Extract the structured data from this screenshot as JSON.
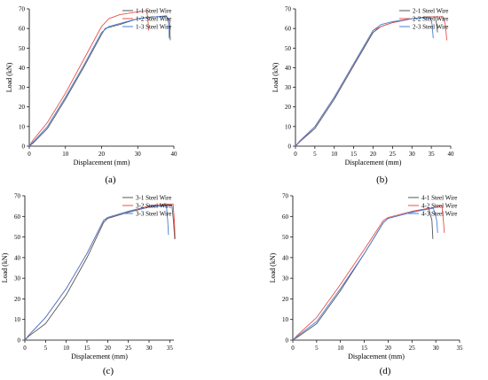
{
  "chart_data": [
    {
      "type": "line",
      "panel_label": "(a)",
      "xlabel": "Displacement (mm)",
      "ylabel": "Load (kN)",
      "xlim": [
        0,
        40
      ],
      "ylim": [
        0,
        70
      ],
      "xticks": [
        0,
        10,
        20,
        30,
        40
      ],
      "yticks": [
        0,
        10,
        20,
        30,
        40,
        50,
        60,
        70
      ],
      "legend": "top-right",
      "grid": false,
      "series": [
        {
          "name": "1-1 Steel Wire",
          "color": "#555555",
          "x": [
            0,
            1,
            5,
            10,
            15,
            20,
            21,
            25,
            30,
            34,
            38,
            38.8,
            39
          ],
          "y": [
            0,
            1.5,
            9,
            24,
            40,
            57,
            60,
            62,
            65,
            66,
            66,
            64,
            54
          ]
        },
        {
          "name": "1-2 Steel Wire",
          "color": "#e8514e",
          "x": [
            0,
            1,
            5,
            10,
            15,
            20,
            22,
            25,
            30,
            32.5,
            32.8,
            33
          ],
          "y": [
            0,
            3,
            12,
            27,
            44,
            61,
            65,
            67,
            68.5,
            69,
            65,
            59
          ]
        },
        {
          "name": "1-3 Steel Wire",
          "color": "#4a7fd4",
          "x": [
            0,
            1,
            5,
            10,
            15,
            20,
            22,
            25,
            30,
            35,
            38,
            38.5,
            38.7
          ],
          "y": [
            0,
            2,
            10,
            25,
            41,
            58,
            61,
            62.5,
            65,
            66,
            66.5,
            63,
            55
          ]
        }
      ]
    },
    {
      "type": "line",
      "panel_label": "(b)",
      "xlabel": "Displacement (mm)",
      "ylabel": "Load (kN)",
      "xlim": [
        0,
        40
      ],
      "ylim": [
        0,
        70
      ],
      "xticks": [
        0,
        5,
        10,
        15,
        20,
        25,
        30,
        35,
        40
      ],
      "yticks": [
        0,
        10,
        20,
        30,
        40,
        50,
        60,
        70
      ],
      "legend": "top-right",
      "grid": false,
      "series": [
        {
          "name": "2-1 Steel Wire",
          "color": "#555555",
          "x": [
            0,
            1,
            5,
            10,
            15,
            20,
            22,
            25,
            30,
            34,
            36,
            36.3,
            36.6
          ],
          "y": [
            0,
            2,
            9,
            24,
            41,
            58,
            61,
            63,
            65,
            66,
            66,
            63,
            58
          ]
        },
        {
          "name": "2-2 Steel Wire",
          "color": "#e8514e",
          "x": [
            0,
            1,
            5,
            10,
            15,
            20,
            22,
            25,
            30,
            35,
            38,
            38.6,
            39
          ],
          "y": [
            0,
            2,
            10,
            25,
            42,
            59,
            61,
            63,
            65,
            66,
            66,
            62,
            54
          ]
        },
        {
          "name": "2-3 Steel Wire",
          "color": "#4a7fd4",
          "x": [
            0,
            1,
            5,
            10,
            15,
            20,
            22,
            25,
            30,
            33,
            34.8,
            35.2,
            35.5
          ],
          "y": [
            0,
            2.5,
            10,
            25,
            42,
            59,
            62,
            63.5,
            65,
            65.5,
            65.5,
            62,
            55
          ]
        }
      ]
    },
    {
      "type": "line",
      "panel_label": "(c)",
      "xlabel": "Displacement (mm)",
      "ylabel": "Load (kN)",
      "xlim": [
        0,
        36
      ],
      "ylim": [
        0,
        70
      ],
      "xticks": [
        0,
        5,
        10,
        15,
        20,
        25,
        30,
        35
      ],
      "yticks": [
        0,
        10,
        20,
        30,
        40,
        50,
        60,
        70
      ],
      "legend": "top-right",
      "grid": false,
      "series": [
        {
          "name": "3-1 Steel Wire",
          "color": "#555555",
          "x": [
            0,
            1,
            5,
            10,
            15,
            19,
            20,
            25,
            30,
            34,
            35.5,
            35.9,
            36.2
          ],
          "y": [
            0,
            2,
            8,
            22,
            40,
            57,
            59,
            62,
            64.5,
            65.5,
            65.5,
            58,
            49
          ]
        },
        {
          "name": "3-2 Steel Wire",
          "color": "#e8514e",
          "x": [
            0,
            1,
            5,
            10,
            15,
            19,
            20,
            25,
            30,
            34,
            35.8,
            36.1,
            36.3
          ],
          "y": [
            0,
            2.5,
            11,
            25,
            42,
            58,
            59.5,
            62.5,
            65,
            66,
            66,
            58,
            49
          ]
        },
        {
          "name": "3-3 Steel Wire",
          "color": "#4a7fd4",
          "x": [
            0,
            1,
            5,
            10,
            15,
            19,
            20,
            25,
            30,
            33,
            34.2,
            34.5,
            34.7
          ],
          "y": [
            0,
            2.5,
            11,
            25,
            42,
            58,
            59.5,
            62.5,
            64.5,
            65,
            65,
            58,
            51
          ]
        }
      ]
    },
    {
      "type": "line",
      "panel_label": "(d)",
      "xlabel": "Displacement (mm)",
      "ylabel": "Load (kN)",
      "xlim": [
        0,
        35
      ],
      "ylim": [
        0,
        70
      ],
      "xticks": [
        0,
        5,
        10,
        15,
        20,
        25,
        30,
        35
      ],
      "yticks": [
        0,
        10,
        20,
        30,
        40,
        50,
        60,
        70
      ],
      "legend": "top-right",
      "grid": false,
      "series": [
        {
          "name": "4-1 Steel Wire",
          "color": "#555555",
          "x": [
            0,
            1,
            5,
            10,
            15,
            19,
            20,
            25,
            28.5,
            29.2,
            29.4
          ],
          "y": [
            0,
            1.5,
            8,
            24,
            42,
            57,
            59,
            62,
            64,
            58,
            49
          ]
        },
        {
          "name": "4-2 Steel Wire",
          "color": "#e8514e",
          "x": [
            0,
            1,
            5,
            10,
            15,
            19,
            20,
            25,
            30,
            31.3,
            31.6,
            31.8
          ],
          "y": [
            0,
            2.5,
            11,
            27,
            44,
            58,
            59.5,
            62.5,
            64.5,
            65,
            58,
            52
          ]
        },
        {
          "name": "4-3 Steel Wire",
          "color": "#4a7fd4",
          "x": [
            0,
            1,
            5,
            10,
            15,
            19,
            20,
            25,
            29.5,
            30.2,
            30.4
          ],
          "y": [
            0,
            2,
            9,
            25,
            42,
            57,
            59,
            62,
            64,
            58,
            52
          ]
        }
      ]
    }
  ]
}
